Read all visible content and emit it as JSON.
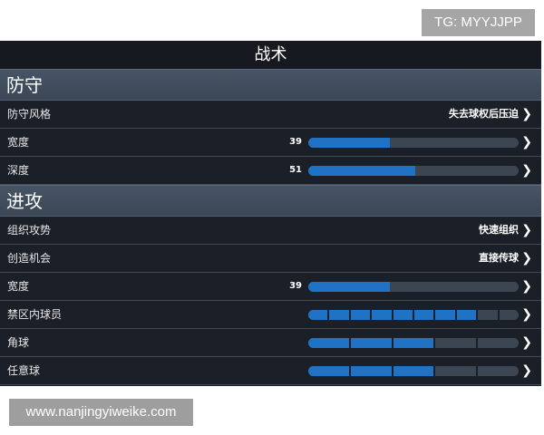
{
  "watermark_top": "TG: MYYJJPP",
  "watermark_bottom": "www.nanjingyiweike.com",
  "title": "战术",
  "colors": {
    "bar_fill": "#1f72c4",
    "bar_empty": "#3c4552",
    "panel_bg": "#1b1f27"
  },
  "sections": [
    {
      "label": "防守",
      "rows": [
        {
          "label": "防守风格",
          "type": "text",
          "value": "失去球权后压迫"
        },
        {
          "label": "宽度",
          "type": "bar",
          "value": "39",
          "percent": 39
        },
        {
          "label": "深度",
          "type": "bar",
          "value": "51",
          "percent": 51
        }
      ]
    },
    {
      "label": "进攻",
      "rows": [
        {
          "label": "组织攻势",
          "type": "text",
          "value": "快速组织"
        },
        {
          "label": "创造机会",
          "type": "text",
          "value": "直接传球"
        },
        {
          "label": "宽度",
          "type": "bar",
          "value": "39",
          "percent": 39
        },
        {
          "label": "禁区内球员",
          "type": "segments",
          "filled": 8,
          "total": 10
        },
        {
          "label": "角球",
          "type": "segments",
          "filled": 3,
          "total": 5
        },
        {
          "label": "任意球",
          "type": "segments",
          "filled": 3,
          "total": 5
        }
      ]
    }
  ]
}
